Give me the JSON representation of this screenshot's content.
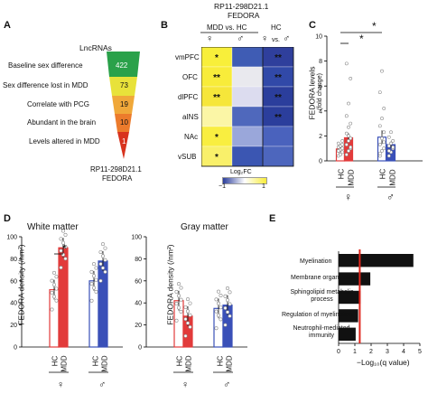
{
  "panelA": {
    "letter": "A",
    "header": "LncRNAs",
    "rows": [
      {
        "label": "Baseline sex difference",
        "value": "422",
        "color": "#2aa14a"
      },
      {
        "label": "Sex difference lost in MDD",
        "value": "73",
        "color": "#e8e23a"
      },
      {
        "label": "Correlate with PCG",
        "value": "19",
        "color": "#f0a83a"
      },
      {
        "label": "Abundant in the brain",
        "value": "10",
        "color": "#ec7b2c"
      },
      {
        "label": "Levels altered in MDD",
        "value": "1",
        "color": "#d8331e"
      }
    ],
    "footer1": "RP11-298D21.1",
    "footer2": "FEDORA"
  },
  "panelB": {
    "letter": "B",
    "title1": "RP11-298D21.1",
    "title2": "FEDORA",
    "col_header": "MDD vs. HC",
    "hc_label": "HC",
    "vs_label": "vs.",
    "female": "♀",
    "male": "♂",
    "rows": [
      "vmPFC",
      "OFC",
      "dlPFC",
      "aINS",
      "NAc",
      "vSUB"
    ],
    "cells": [
      {
        "colors": [
          "#f8ef3a",
          "#3f5cb4",
          "#2f3f9c"
        ],
        "marks": [
          "*",
          "",
          "**"
        ]
      },
      {
        "colors": [
          "#f8ec3a",
          "#e9e9ee",
          "#3149a8"
        ],
        "marks": [
          "**",
          "",
          "**"
        ]
      },
      {
        "colors": [
          "#f6e63a",
          "#dcdcef",
          "#2b3e9c"
        ],
        "marks": [
          "**",
          "",
          "**"
        ]
      },
      {
        "colors": [
          "#fbf6a6",
          "#4f68bc",
          "#2b3e9c"
        ],
        "marks": [
          "",
          "",
          "**"
        ]
      },
      {
        "colors": [
          "#f9ee40",
          "#9aa7da",
          "#4a62bd"
        ],
        "marks": [
          "*",
          "",
          ""
        ]
      },
      {
        "colors": [
          "#f9f06a",
          "#3b56b2",
          "#4d66bd"
        ],
        "marks": [
          "*",
          "",
          ""
        ]
      }
    ],
    "legend_title": "Log₂FC",
    "legend_min": "−1",
    "legend_max": "1",
    "colors": {
      "low": "#2b3e9c",
      "mid": "#ffffff",
      "high": "#f8ec3a"
    }
  },
  "panelC": {
    "letter": "C",
    "ylabel1": "FEDORA levels",
    "ylabel2": "(fold change)",
    "yticks": [
      "0",
      "2",
      "4",
      "6",
      "8",
      "10"
    ],
    "xlabels": [
      "HC",
      "MDD",
      "HC",
      "MDD"
    ],
    "sig": [
      "*",
      "*"
    ],
    "female": "♀",
    "male": "♂",
    "chart_data": {
      "type": "bar",
      "categories": [
        "HC ♀",
        "MDD ♀",
        "HC ♂",
        "MDD ♂"
      ],
      "values": [
        0.95,
        1.85,
        1.9,
        1.3
      ],
      "errors": [
        0.2,
        0.35,
        0.55,
        0.25
      ],
      "ylim": [
        0,
        10
      ]
    }
  },
  "panelD": {
    "letter": "D",
    "white_title": "White matter",
    "gray_title": "Gray matter",
    "ylabel": "FEDORA density (/nm²)",
    "yticks": [
      "0",
      "20",
      "40",
      "60",
      "80",
      "100"
    ],
    "xlabels": [
      "HC",
      "MDD",
      "HC",
      "MDD"
    ],
    "sig": "*",
    "female": "♀",
    "male": "♂",
    "chart_data": [
      {
        "type": "bar",
        "title": "White matter",
        "categories": [
          "HC ♀",
          "MDD ♀",
          "HC ♂",
          "MDD ♂"
        ],
        "values": [
          52,
          90,
          60,
          78
        ],
        "ylim": [
          0,
          100
        ]
      },
      {
        "type": "bar",
        "title": "Gray matter",
        "categories": [
          "HC ♀",
          "MDD ♀",
          "HC ♂",
          "MDD ♂"
        ],
        "values": [
          42,
          28,
          35,
          38
        ],
        "ylim": [
          0,
          100
        ]
      }
    ]
  },
  "panelE": {
    "letter": "E",
    "terms": [
      "Myelination",
      "Membrane organization",
      "Sphingolipid metabolic process",
      "Regulation of myelination",
      "Neutrophil-mediated immunity"
    ],
    "xticks": [
      "0",
      "1",
      "2",
      "3",
      "4",
      "5"
    ],
    "xlabel": "−Log₁₀(q value)",
    "chart_data": {
      "type": "bar",
      "categories": [
        "Myelination",
        "Membrane organization",
        "Sphingolipid metabolic process",
        "Regulation of myelination",
        "Neutrophil-mediated immunity"
      ],
      "values": [
        4.6,
        1.95,
        1.35,
        1.2,
        1.05
      ],
      "threshold": 1.3,
      "xlim": [
        0,
        5
      ]
    }
  }
}
